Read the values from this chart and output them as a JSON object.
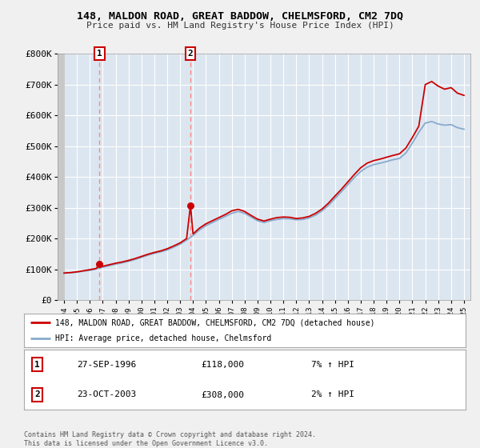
{
  "title1": "148, MALDON ROAD, GREAT BADDOW, CHELMSFORD, CM2 7DQ",
  "title2": "Price paid vs. HM Land Registry's House Price Index (HPI)",
  "ylim": [
    0,
    800000
  ],
  "yticks": [
    0,
    100000,
    200000,
    300000,
    400000,
    500000,
    600000,
    700000,
    800000
  ],
  "ytick_labels": [
    "£0",
    "£100K",
    "£200K",
    "£300K",
    "£400K",
    "£500K",
    "£600K",
    "£700K",
    "£800K"
  ],
  "background_color": "#f0f0f0",
  "plot_bg_color": "#dce6f0",
  "grid_color": "#ffffff",
  "legend_label_red": "148, MALDON ROAD, GREAT BADDOW, CHELMSFORD, CM2 7DQ (detached house)",
  "legend_label_blue": "HPI: Average price, detached house, Chelmsford",
  "annotation1_date": "27-SEP-1996",
  "annotation1_price": "£118,000",
  "annotation1_hpi": "7% ↑ HPI",
  "annotation2_date": "23-OCT-2003",
  "annotation2_price": "£308,000",
  "annotation2_hpi": "2% ↑ HPI",
  "footer": "Contains HM Land Registry data © Crown copyright and database right 2024.\nThis data is licensed under the Open Government Licence v3.0.",
  "sale1_year": 1996.75,
  "sale1_price": 118000,
  "sale2_year": 2003.8,
  "sale2_price": 308000,
  "red_line_color": "#cc0000",
  "blue_line_color": "#88aacc",
  "dashed_line_color": "#ff8888",
  "hpi_years": [
    1994,
    1994.5,
    1995,
    1995.5,
    1996,
    1996.5,
    1997,
    1997.5,
    1998,
    1998.5,
    1999,
    1999.5,
    2000,
    2000.5,
    2001,
    2001.5,
    2002,
    2002.5,
    2003,
    2003.5,
    2004,
    2004.5,
    2005,
    2005.5,
    2006,
    2006.5,
    2007,
    2007.5,
    2008,
    2008.5,
    2009,
    2009.5,
    2010,
    2010.5,
    2011,
    2011.5,
    2012,
    2012.5,
    2013,
    2013.5,
    2014,
    2014.5,
    2015,
    2015.5,
    2016,
    2016.5,
    2017,
    2017.5,
    2018,
    2018.5,
    2019,
    2019.5,
    2020,
    2020.5,
    2021,
    2021.5,
    2022,
    2022.5,
    2023,
    2023.5,
    2024,
    2024.5,
    2025
  ],
  "hpi_values": [
    88000,
    89000,
    91000,
    94000,
    97000,
    101000,
    107000,
    112000,
    117000,
    121000,
    126000,
    132000,
    139000,
    146000,
    152000,
    157000,
    163000,
    172000,
    182000,
    195000,
    210000,
    228000,
    242000,
    252000,
    262000,
    272000,
    282000,
    288000,
    282000,
    270000,
    258000,
    252000,
    258000,
    262000,
    265000,
    264000,
    261000,
    262000,
    267000,
    276000,
    290000,
    308000,
    330000,
    352000,
    375000,
    398000,
    418000,
    432000,
    440000,
    445000,
    450000,
    456000,
    460000,
    478000,
    510000,
    545000,
    575000,
    580000,
    572000,
    568000,
    570000,
    560000,
    555000
  ],
  "red_years": [
    1994,
    1994.5,
    1995,
    1995.5,
    1996,
    1996.5,
    1996.75,
    1997,
    1997.5,
    1998,
    1998.5,
    1999,
    1999.5,
    2000,
    2000.5,
    2001,
    2001.5,
    2002,
    2002.5,
    2003,
    2003.5,
    2003.8,
    2004,
    2004.5,
    2005,
    2005.5,
    2006,
    2006.5,
    2007,
    2007.5,
    2008,
    2008.5,
    2009,
    2009.5,
    2010,
    2010.5,
    2011,
    2011.5,
    2012,
    2012.5,
    2013,
    2013.5,
    2014,
    2014.5,
    2015,
    2015.5,
    2016,
    2016.5,
    2017,
    2017.5,
    2018,
    2018.5,
    2019,
    2019.5,
    2020,
    2020.5,
    2021,
    2021.5,
    2022,
    2022.5,
    2023,
    2023.5,
    2024,
    2024.5,
    2025
  ],
  "red_values": [
    88000,
    89500,
    92000,
    95500,
    99000,
    103000,
    118000,
    110000,
    115000,
    120000,
    124000,
    129000,
    135000,
    142000,
    149000,
    155000,
    160000,
    167000,
    176000,
    186000,
    200000,
    308000,
    215000,
    234000,
    248000,
    258000,
    268000,
    278000,
    290000,
    295000,
    288000,
    275000,
    263000,
    257000,
    263000,
    268000,
    270000,
    269000,
    265000,
    267000,
    272000,
    282000,
    296000,
    315000,
    338000,
    360000,
    384000,
    408000,
    430000,
    445000,
    453000,
    458000,
    464000,
    470000,
    475000,
    494000,
    528000,
    565000,
    700000,
    710000,
    695000,
    685000,
    690000,
    672000,
    665000
  ]
}
